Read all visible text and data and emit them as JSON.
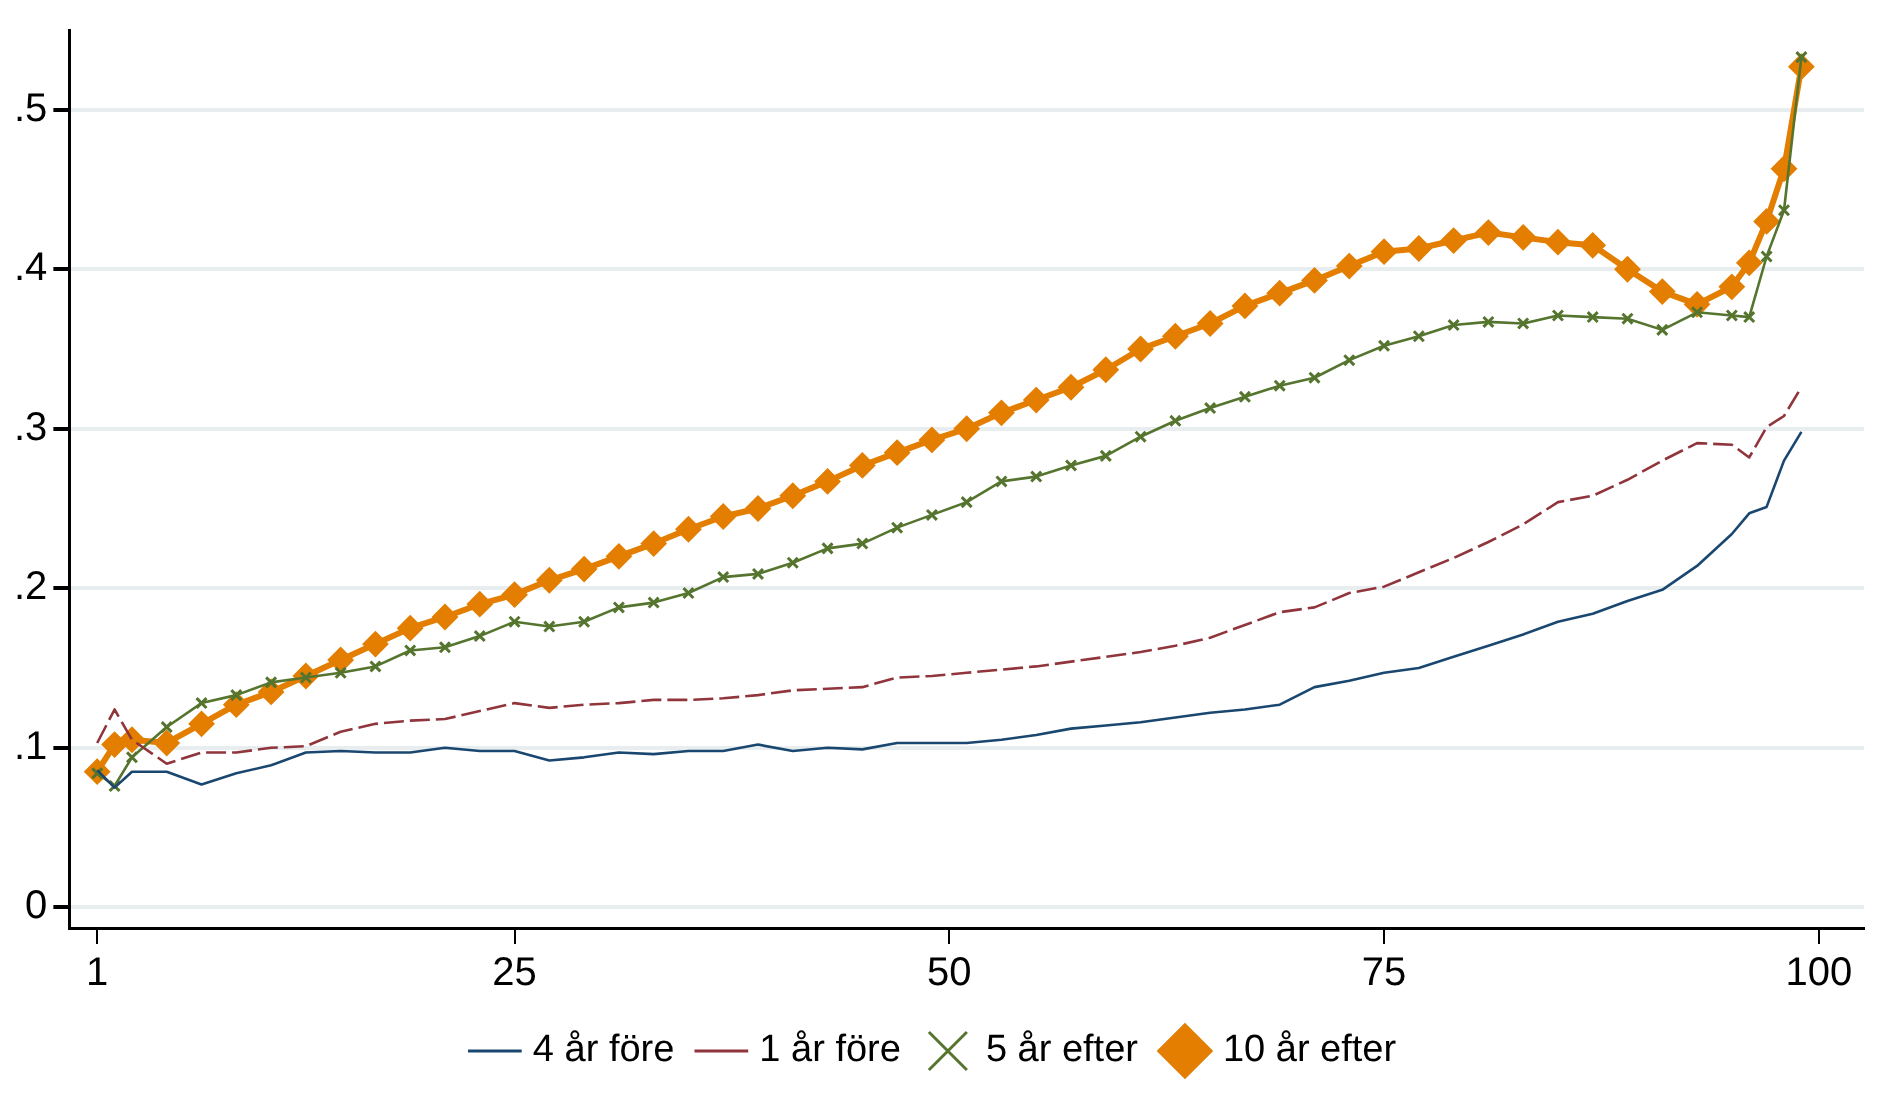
{
  "chart_data": {
    "type": "line",
    "x": [
      1,
      2,
      3,
      5,
      7,
      9,
      11,
      13,
      15,
      17,
      19,
      21,
      23,
      25,
      27,
      29,
      31,
      33,
      35,
      37,
      39,
      41,
      43,
      45,
      47,
      49,
      51,
      53,
      55,
      57,
      59,
      61,
      63,
      65,
      67,
      69,
      71,
      73,
      75,
      77,
      79,
      81,
      83,
      85,
      87,
      89,
      91,
      93,
      95,
      96,
      97,
      98,
      99
    ],
    "xlim": [
      -0.6,
      102.6
    ],
    "ylim": [
      -0.013,
      0.55
    ],
    "xticks": [
      1,
      25,
      50,
      75,
      100
    ],
    "yticks": [
      {
        "value": 0,
        "label": "0"
      },
      {
        "value": 0.1,
        "label": ".1"
      },
      {
        "value": 0.2,
        "label": ".2"
      },
      {
        "value": 0.3,
        "label": ".3"
      },
      {
        "value": 0.4,
        "label": ".4"
      },
      {
        "value": 0.5,
        "label": ".5"
      }
    ],
    "grid": "y",
    "legend": "bottom",
    "series": [
      {
        "name": "4 år före",
        "color": "#1a476f",
        "marker": "none",
        "line_style": "solid",
        "values": [
          0.086,
          0.075,
          0.085,
          0.085,
          0.077,
          0.084,
          0.089,
          0.097,
          0.098,
          0.097,
          0.097,
          0.1,
          0.098,
          0.098,
          0.092,
          0.094,
          0.097,
          0.096,
          0.098,
          0.098,
          0.102,
          0.098,
          0.1,
          0.099,
          0.103,
          0.103,
          0.103,
          0.105,
          0.108,
          0.112,
          0.114,
          0.116,
          0.119,
          0.122,
          0.124,
          0.127,
          0.138,
          0.142,
          0.147,
          0.15,
          0.157,
          0.164,
          0.171,
          0.179,
          0.184,
          0.192,
          0.199,
          0.214,
          0.234,
          0.247,
          0.251,
          0.28,
          0.298
        ]
      },
      {
        "name": "1 år före",
        "color": "#90353b",
        "marker": "none",
        "line_style": "dashed",
        "values": [
          0.103,
          0.124,
          0.105,
          0.09,
          0.097,
          0.097,
          0.1,
          0.101,
          0.11,
          0.115,
          0.117,
          0.118,
          0.123,
          0.128,
          0.125,
          0.127,
          0.128,
          0.13,
          0.13,
          0.131,
          0.133,
          0.136,
          0.137,
          0.138,
          0.144,
          0.145,
          0.147,
          0.149,
          0.151,
          0.154,
          0.157,
          0.16,
          0.164,
          0.169,
          0.177,
          0.185,
          0.188,
          0.197,
          0.201,
          0.21,
          0.219,
          0.229,
          0.24,
          0.254,
          0.258,
          0.268,
          0.28,
          0.291,
          0.29,
          0.282,
          0.301,
          0.308,
          0.326
        ]
      },
      {
        "name": "5 år efter",
        "color": "#55752f",
        "marker": "cross",
        "line_style": "solid",
        "values": [
          0.084,
          0.076,
          0.094,
          0.113,
          0.128,
          0.133,
          0.141,
          0.144,
          0.147,
          0.151,
          0.161,
          0.163,
          0.17,
          0.179,
          0.176,
          0.179,
          0.188,
          0.191,
          0.197,
          0.207,
          0.209,
          0.216,
          0.225,
          0.228,
          0.238,
          0.246,
          0.254,
          0.267,
          0.27,
          0.277,
          0.283,
          0.295,
          0.305,
          0.313,
          0.32,
          0.327,
          0.332,
          0.343,
          0.352,
          0.358,
          0.365,
          0.367,
          0.366,
          0.371,
          0.37,
          0.369,
          0.362,
          0.373,
          0.371,
          0.37,
          0.408,
          0.437,
          0.533
        ]
      },
      {
        "name": "10 år efter",
        "color": "#e37e00",
        "marker": "diamond",
        "line_style": "solid",
        "values": [
          0.085,
          0.102,
          0.105,
          0.103,
          0.115,
          0.127,
          0.135,
          0.145,
          0.155,
          0.165,
          0.175,
          0.182,
          0.19,
          0.196,
          0.205,
          0.212,
          0.22,
          0.228,
          0.237,
          0.245,
          0.25,
          0.258,
          0.267,
          0.277,
          0.285,
          0.293,
          0.3,
          0.31,
          0.318,
          0.326,
          0.337,
          0.35,
          0.358,
          0.366,
          0.377,
          0.385,
          0.393,
          0.402,
          0.411,
          0.413,
          0.418,
          0.423,
          0.42,
          0.417,
          0.415,
          0.4,
          0.386,
          0.378,
          0.389,
          0.404,
          0.43,
          0.463,
          0.527
        ]
      }
    ]
  }
}
